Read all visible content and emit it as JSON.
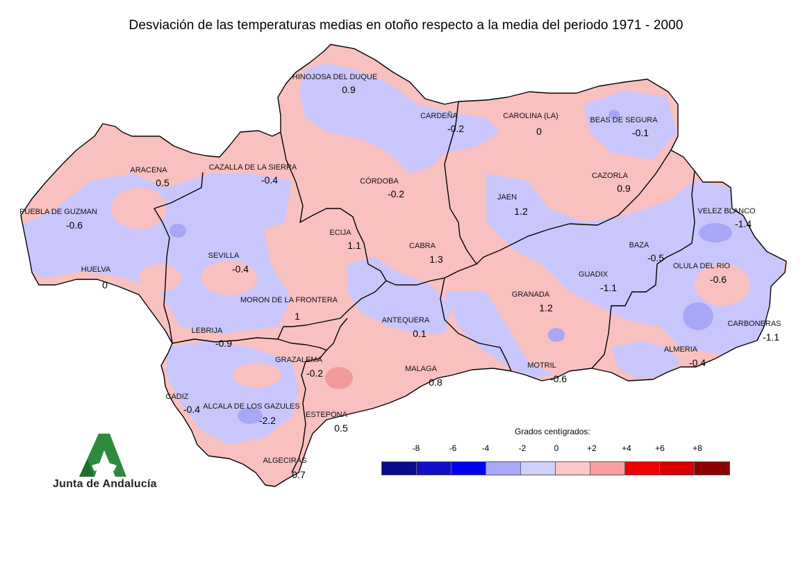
{
  "title": "Desviación de las temperaturas medias en otoño respecto a la media del periodo 1971 - 2000",
  "stations": [
    {
      "name": "HINOJOSA DEL DUQUE",
      "value": "0.9"
    },
    {
      "name": "CARDEÑA",
      "value": "-0.2"
    },
    {
      "name": "CAROLINA (LA)",
      "value": "0"
    },
    {
      "name": "BEAS DE SEGURA",
      "value": "-0.1"
    },
    {
      "name": "ARACENA",
      "value": "0.5"
    },
    {
      "name": "CAZALLA DE LA SIERRA",
      "value": "-0.4"
    },
    {
      "name": "CÓRDOBA",
      "value": "-0.2"
    },
    {
      "name": "CAZORLA",
      "value": "0.9"
    },
    {
      "name": "JAEN",
      "value": "1.2"
    },
    {
      "name": "PUEBLA DE GUZMAN",
      "value": "-0.6"
    },
    {
      "name": "ECIJA",
      "value": "1.1"
    },
    {
      "name": "VELEZ BLANCO",
      "value": "-1.4"
    },
    {
      "name": "CABRA",
      "value": "1.3"
    },
    {
      "name": "BAZA",
      "value": "-0.5"
    },
    {
      "name": "SEVILLA",
      "value": "-0.4"
    },
    {
      "name": "HUELVA",
      "value": "0"
    },
    {
      "name": "OLULA DEL RIO",
      "value": "-0.6"
    },
    {
      "name": "GUADIX",
      "value": "-1.1"
    },
    {
      "name": "GRANADA",
      "value": "1.2"
    },
    {
      "name": "MORON DE LA FRONTERA",
      "value": "1"
    },
    {
      "name": "ANTEQUERA",
      "value": "0.1"
    },
    {
      "name": "CARBONERAS",
      "value": "-1.1"
    },
    {
      "name": "LEBRIJA",
      "value": "-0.9"
    },
    {
      "name": "GRAZALEMA",
      "value": "-0.2"
    },
    {
      "name": "MALAGA",
      "value": "0.8"
    },
    {
      "name": "MOTRIL",
      "value": "-0.6"
    },
    {
      "name": "ALMERIA",
      "value": "-0.4"
    },
    {
      "name": "CADIZ",
      "value": "-0.4"
    },
    {
      "name": "ALCALA DE LOS GAZULES",
      "value": "-2.2"
    },
    {
      "name": "ESTEPONA",
      "value": "0.5"
    },
    {
      "name": "ALGECIRAS",
      "value": "0.7"
    }
  ],
  "legend": {
    "title": "Grados centígrados:",
    "ticks": [
      "-8",
      "-6",
      "-4",
      "-2",
      "0",
      "+2",
      "+4",
      "+6",
      "+8"
    ],
    "colors": [
      "#0a0a8c",
      "#1010c8",
      "#0000f0",
      "#a8a8f8",
      "#d0d0fc",
      "#fcc8c8",
      "#f8a0a0",
      "#f00000",
      "#d80000",
      "#8c0000"
    ]
  },
  "colors": {
    "positive_fill": "#f9c0c0",
    "negative_fill": "#c9c6fb",
    "border": "#000000"
  },
  "logo": {
    "text": "Junta de Andalucía",
    "icon": "junta-de-andalucia-logo-icon"
  }
}
